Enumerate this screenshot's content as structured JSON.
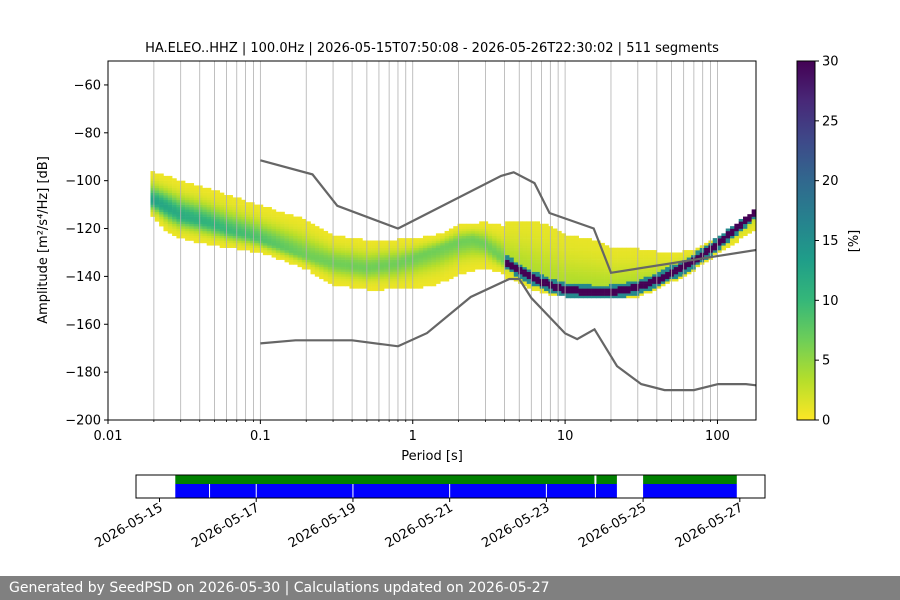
{
  "chart_data": {
    "type": "heatmap",
    "title": "HA.ELEO..HHZ | 100.0Hz | 2026-05-15T07:50:08 - 2026-05-26T22:30:02 | 511 segments",
    "xlabel": "Period [s]",
    "ylabel": "Amplitude [m²/s⁴/Hz] [dB]",
    "xscale": "log",
    "xlim": [
      0.01,
      179
    ],
    "ylim": [
      -200,
      -50
    ],
    "x_ticks": [
      {
        "value": 0.01,
        "label": "0.01"
      },
      {
        "value": 0.1,
        "label": "0.1"
      },
      {
        "value": 1,
        "label": "1"
      },
      {
        "value": 10,
        "label": "10"
      },
      {
        "value": 100,
        "label": "100"
      }
    ],
    "y_ticks": [
      {
        "value": -60,
        "label": "−60"
      },
      {
        "value": -80,
        "label": "−80"
      },
      {
        "value": -100,
        "label": "−100"
      },
      {
        "value": -120,
        "label": "−120"
      },
      {
        "value": -140,
        "label": "−140"
      },
      {
        "value": -160,
        "label": "−160"
      },
      {
        "value": -180,
        "label": "−180"
      },
      {
        "value": -200,
        "label": "−200"
      }
    ],
    "grid": "vertical",
    "colorbar": {
      "label": "[%]",
      "range": [
        0,
        30
      ],
      "ticks": [
        {
          "value": 0,
          "label": "0"
        },
        {
          "value": 5,
          "label": "5"
        },
        {
          "value": 10,
          "label": "10"
        },
        {
          "value": 15,
          "label": "15"
        },
        {
          "value": 20,
          "label": "20"
        },
        {
          "value": 25,
          "label": "25"
        },
        {
          "value": 30,
          "label": "30"
        }
      ],
      "colormap": [
        "#fde725",
        "#b5de2b",
        "#6ece58",
        "#35b779",
        "#1f9e89",
        "#26828e",
        "#31688e",
        "#3e4989",
        "#482878",
        "#440154"
      ]
    },
    "noise_models": {
      "color": "#666666",
      "high": [
        [
          0.1,
          -91.5
        ],
        [
          0.22,
          -97.4
        ],
        [
          0.32,
          -110.5
        ],
        [
          0.8,
          -120
        ],
        [
          3.8,
          -98
        ],
        [
          4.6,
          -96.5
        ],
        [
          6.3,
          -101
        ],
        [
          7.9,
          -113.5
        ],
        [
          15.4,
          -120
        ],
        [
          20,
          -138.5
        ],
        [
          354.8,
          -126
        ]
      ],
      "low": [
        [
          0.1,
          -168
        ],
        [
          0.17,
          -166.7
        ],
        [
          0.4,
          -166.7
        ],
        [
          0.8,
          -169.2
        ],
        [
          1.24,
          -163.7
        ],
        [
          2.4,
          -148.6
        ],
        [
          4.3,
          -141.1
        ],
        [
          5,
          -141.1
        ],
        [
          6,
          -149
        ],
        [
          10,
          -163.8
        ],
        [
          12,
          -166.2
        ],
        [
          15.6,
          -162.1
        ],
        [
          21.9,
          -177.5
        ],
        [
          31.6,
          -185
        ],
        [
          45,
          -187.5
        ],
        [
          70,
          -187.5
        ],
        [
          101,
          -185
        ],
        [
          154,
          -185
        ],
        [
          328,
          -187.5
        ]
      ]
    },
    "psd_mode": [
      [
        0.02,
        -109
      ],
      [
        0.025,
        -112
      ],
      [
        0.03,
        -115
      ],
      [
        0.04,
        -117
      ],
      [
        0.05,
        -119
      ],
      [
        0.06,
        -121
      ],
      [
        0.08,
        -123
      ],
      [
        0.1,
        -125
      ],
      [
        0.15,
        -129
      ],
      [
        0.2,
        -132
      ],
      [
        0.3,
        -135
      ],
      [
        0.5,
        -137
      ],
      [
        0.8,
        -135
      ],
      [
        1.2,
        -131
      ],
      [
        2,
        -126
      ],
      [
        2.5,
        -125
      ],
      [
        3,
        -127
      ],
      [
        4,
        -134
      ],
      [
        5,
        -138
      ],
      [
        6,
        -141
      ],
      [
        8,
        -144
      ],
      [
        10,
        -146
      ],
      [
        15,
        -147
      ],
      [
        20,
        -147
      ],
      [
        30,
        -145
      ],
      [
        40,
        -142
      ],
      [
        50,
        -139
      ],
      [
        70,
        -134
      ],
      [
        100,
        -127
      ],
      [
        130,
        -121
      ],
      [
        160,
        -116
      ],
      [
        179,
        -113
      ]
    ],
    "psd_upper": [
      [
        0.019,
        -96
      ],
      [
        0.03,
        -100
      ],
      [
        0.05,
        -104
      ],
      [
        0.1,
        -110
      ],
      [
        0.2,
        -115
      ],
      [
        0.3,
        -122
      ],
      [
        0.5,
        -124
      ],
      [
        1,
        -124
      ],
      [
        1.5,
        -122
      ],
      [
        2,
        -118
      ],
      [
        3,
        -117
      ],
      [
        4,
        -118
      ],
      [
        6,
        -118
      ],
      [
        8,
        -120
      ],
      [
        10,
        -124
      ],
      [
        15,
        -126
      ],
      [
        20,
        -129
      ],
      [
        30,
        -130
      ],
      [
        40,
        -131
      ],
      [
        50,
        -132
      ],
      [
        70,
        -130
      ],
      [
        100,
        -125
      ],
      [
        179,
        -113
      ]
    ],
    "psd_lower": [
      [
        0.019,
        -115
      ],
      [
        0.025,
        -123
      ],
      [
        0.03,
        -125
      ],
      [
        0.05,
        -128
      ],
      [
        0.1,
        -131
      ],
      [
        0.2,
        -138
      ],
      [
        0.3,
        -145
      ],
      [
        0.5,
        -147
      ],
      [
        1,
        -147
      ],
      [
        1.5,
        -145
      ],
      [
        2,
        -141
      ],
      [
        3,
        -138
      ],
      [
        4,
        -140
      ],
      [
        5,
        -142
      ],
      [
        6,
        -145
      ],
      [
        8,
        -147
      ],
      [
        10,
        -148
      ],
      [
        15,
        -149
      ],
      [
        20,
        -149
      ],
      [
        30,
        -148
      ],
      [
        40,
        -145
      ],
      [
        50,
        -142
      ],
      [
        70,
        -137
      ],
      [
        100,
        -130
      ],
      [
        179,
        -120
      ]
    ]
  },
  "availability": {
    "start": "2026-05-15",
    "end": "2026-05-27",
    "x_range": [
      "2026-05-14T12:20",
      "2026-05-27T12:30"
    ],
    "data_color": "#0000ff",
    "gap_color": "#ffffff",
    "coverage_color": "#008000",
    "tick_labels": [
      "2026-05-15",
      "2026-05-17",
      "2026-05-19",
      "2026-05-21",
      "2026-05-23",
      "2026-05-25",
      "2026-05-27"
    ],
    "tick_dates": [
      "2026-05-15",
      "2026-05-17",
      "2026-05-19",
      "2026-05-21",
      "2026-05-23",
      "2026-05-25",
      "2026-05-27"
    ],
    "coverage_segments": [
      [
        "2026-05-15T07:50",
        "2026-05-23T23:50"
      ],
      [
        "2026-05-24T00:50",
        "2026-05-24T11:00"
      ],
      [
        "2026-05-25T00:00",
        "2026-05-26T22:30"
      ]
    ],
    "data_segments": [
      [
        "2026-05-15T07:50",
        "2026-05-24T11:00"
      ],
      [
        "2026-05-25T00:00",
        "2026-05-26T22:30"
      ]
    ],
    "segment_separators": [
      "2026-05-16T00:50",
      "2026-05-17T00:00",
      "2026-05-19T00:00",
      "2026-05-21T00:00",
      "2026-05-23T00:00",
      "2026-05-24T00:20"
    ]
  },
  "footer": "Generated by SeedPSD on 2026-05-30 | Calculations updated on 2026-05-27"
}
